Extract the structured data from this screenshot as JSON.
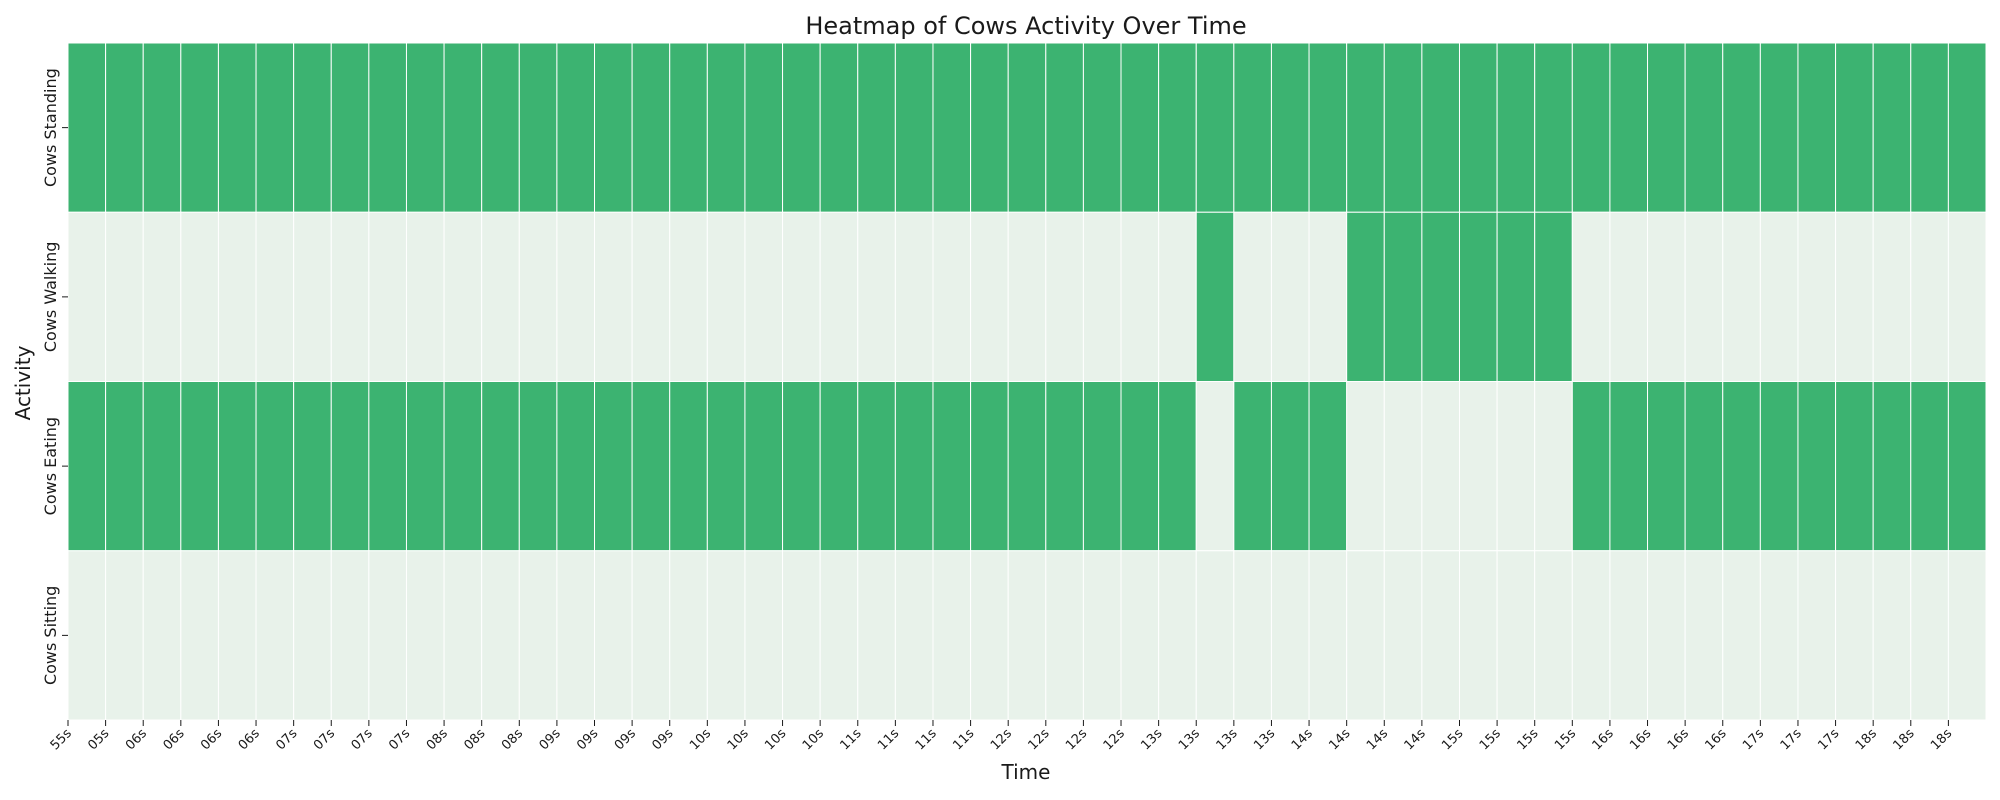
{
  "chart_data": {
    "type": "heatmap",
    "title": "Heatmap of Cows Activity Over Time",
    "xlabel": "Time",
    "ylabel": "Activity",
    "x": [
      "55s",
      "05s",
      "06s",
      "06s",
      "06s",
      "06s",
      "07s",
      "07s",
      "07s",
      "07s",
      "08s",
      "08s",
      "08s",
      "09s",
      "09s",
      "09s",
      "09s",
      "10s",
      "10s",
      "10s",
      "10s",
      "11s",
      "11s",
      "11s",
      "11s",
      "12s",
      "12s",
      "12s",
      "12s",
      "13s",
      "13s",
      "13s",
      "13s",
      "14s",
      "14s",
      "14s",
      "14s",
      "15s",
      "15s",
      "15s",
      "15s",
      "16s",
      "16s",
      "16s",
      "16s",
      "17s",
      "17s",
      "17s",
      "18s",
      "18s",
      "18s"
    ],
    "rows": [
      {
        "label": "Cows Standing",
        "values": [
          1,
          1,
          1,
          1,
          1,
          1,
          1,
          1,
          1,
          1,
          1,
          1,
          1,
          1,
          1,
          1,
          1,
          1,
          1,
          1,
          1,
          1,
          1,
          1,
          1,
          1,
          1,
          1,
          1,
          1,
          1,
          1,
          1,
          1,
          1,
          1,
          1,
          1,
          1,
          1,
          1,
          1,
          1,
          1,
          1,
          1,
          1,
          1,
          1,
          1,
          1
        ]
      },
      {
        "label": "Cows Walking",
        "values": [
          0,
          0,
          0,
          0,
          0,
          0,
          0,
          0,
          0,
          0,
          0,
          0,
          0,
          0,
          0,
          0,
          0,
          0,
          0,
          0,
          0,
          0,
          0,
          0,
          0,
          0,
          0,
          0,
          0,
          0,
          1,
          0,
          0,
          0,
          1,
          1,
          1,
          1,
          1,
          1,
          0,
          0,
          0,
          0,
          0,
          0,
          0,
          0,
          0,
          0,
          0
        ]
      },
      {
        "label": "Cows Eating",
        "values": [
          1,
          1,
          1,
          1,
          1,
          1,
          1,
          1,
          1,
          1,
          1,
          1,
          1,
          1,
          1,
          1,
          1,
          1,
          1,
          1,
          1,
          1,
          1,
          1,
          1,
          1,
          1,
          1,
          1,
          1,
          0,
          1,
          1,
          1,
          0,
          0,
          0,
          0,
          0,
          0,
          1,
          1,
          1,
          1,
          1,
          1,
          1,
          1,
          1,
          1,
          1
        ]
      },
      {
        "label": "Cows Sitting",
        "values": [
          0,
          0,
          0,
          0,
          0,
          0,
          0,
          0,
          0,
          0,
          0,
          0,
          0,
          0,
          0,
          0,
          0,
          0,
          0,
          0,
          0,
          0,
          0,
          0,
          0,
          0,
          0,
          0,
          0,
          0,
          0,
          0,
          0,
          0,
          0,
          0,
          0,
          0,
          0,
          0,
          0,
          0,
          0,
          0,
          0,
          0,
          0,
          0,
          0,
          0,
          0
        ]
      }
    ],
    "colors": {
      "high": "#3cb371",
      "low": "#e8f2ea",
      "grid": "#ffffff"
    },
    "legend": "none"
  }
}
